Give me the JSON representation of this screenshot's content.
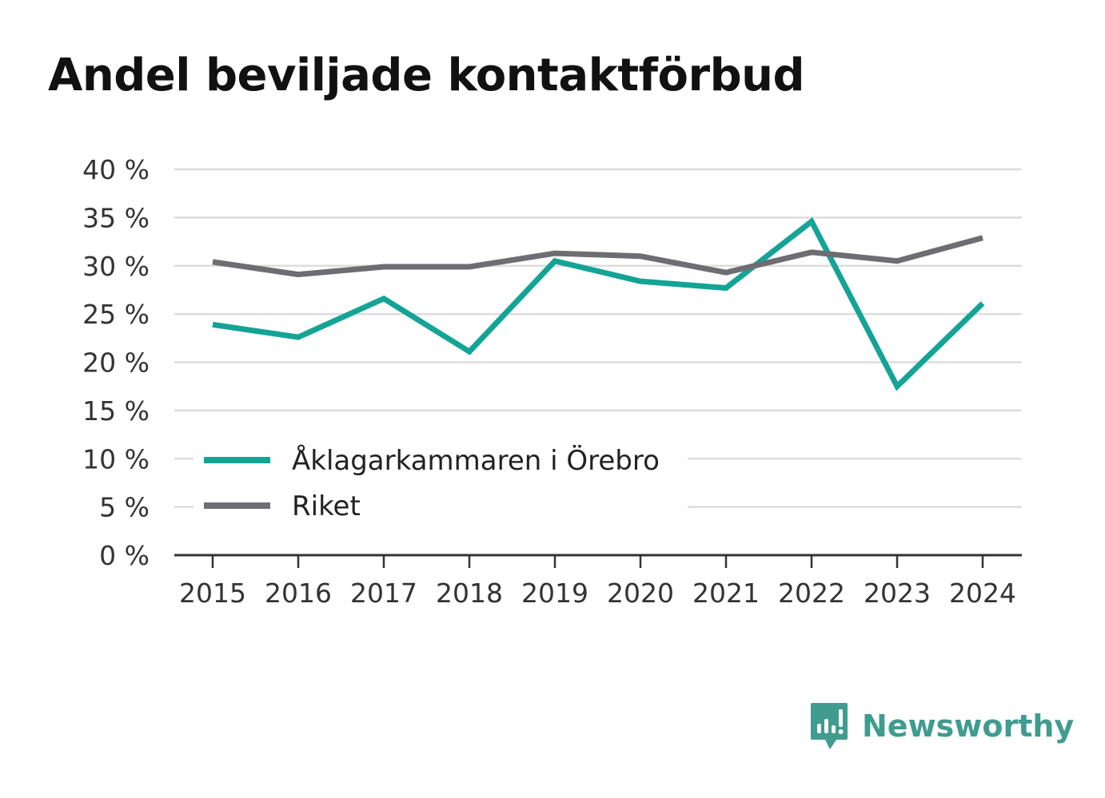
{
  "title": "Andel beviljade kontaktförbud",
  "brand": {
    "name": "Newsworthy",
    "color": "#3f9c8f"
  },
  "chart_data": {
    "type": "line",
    "x": [
      "2015",
      "2016",
      "2017",
      "2018",
      "2019",
      "2020",
      "2021",
      "2022",
      "2023",
      "2024"
    ],
    "y_ticks": [
      "0 %",
      "5 %",
      "10 %",
      "15 %",
      "20 %",
      "25 %",
      "30 %",
      "35 %",
      "40 %"
    ],
    "ylim": [
      0,
      40
    ],
    "grid": true,
    "legend": "bottom-left",
    "series": [
      {
        "name": "Åklagarkammaren i Örebro",
        "color": "#14a496",
        "values": [
          23.9,
          22.6,
          26.6,
          21.1,
          30.5,
          28.4,
          27.7,
          34.6,
          17.5,
          26.1
        ]
      },
      {
        "name": "Riket",
        "color": "#6e6d72",
        "values": [
          30.4,
          29.1,
          29.9,
          29.9,
          31.3,
          31.0,
          29.3,
          31.4,
          30.5,
          32.9
        ]
      }
    ]
  }
}
